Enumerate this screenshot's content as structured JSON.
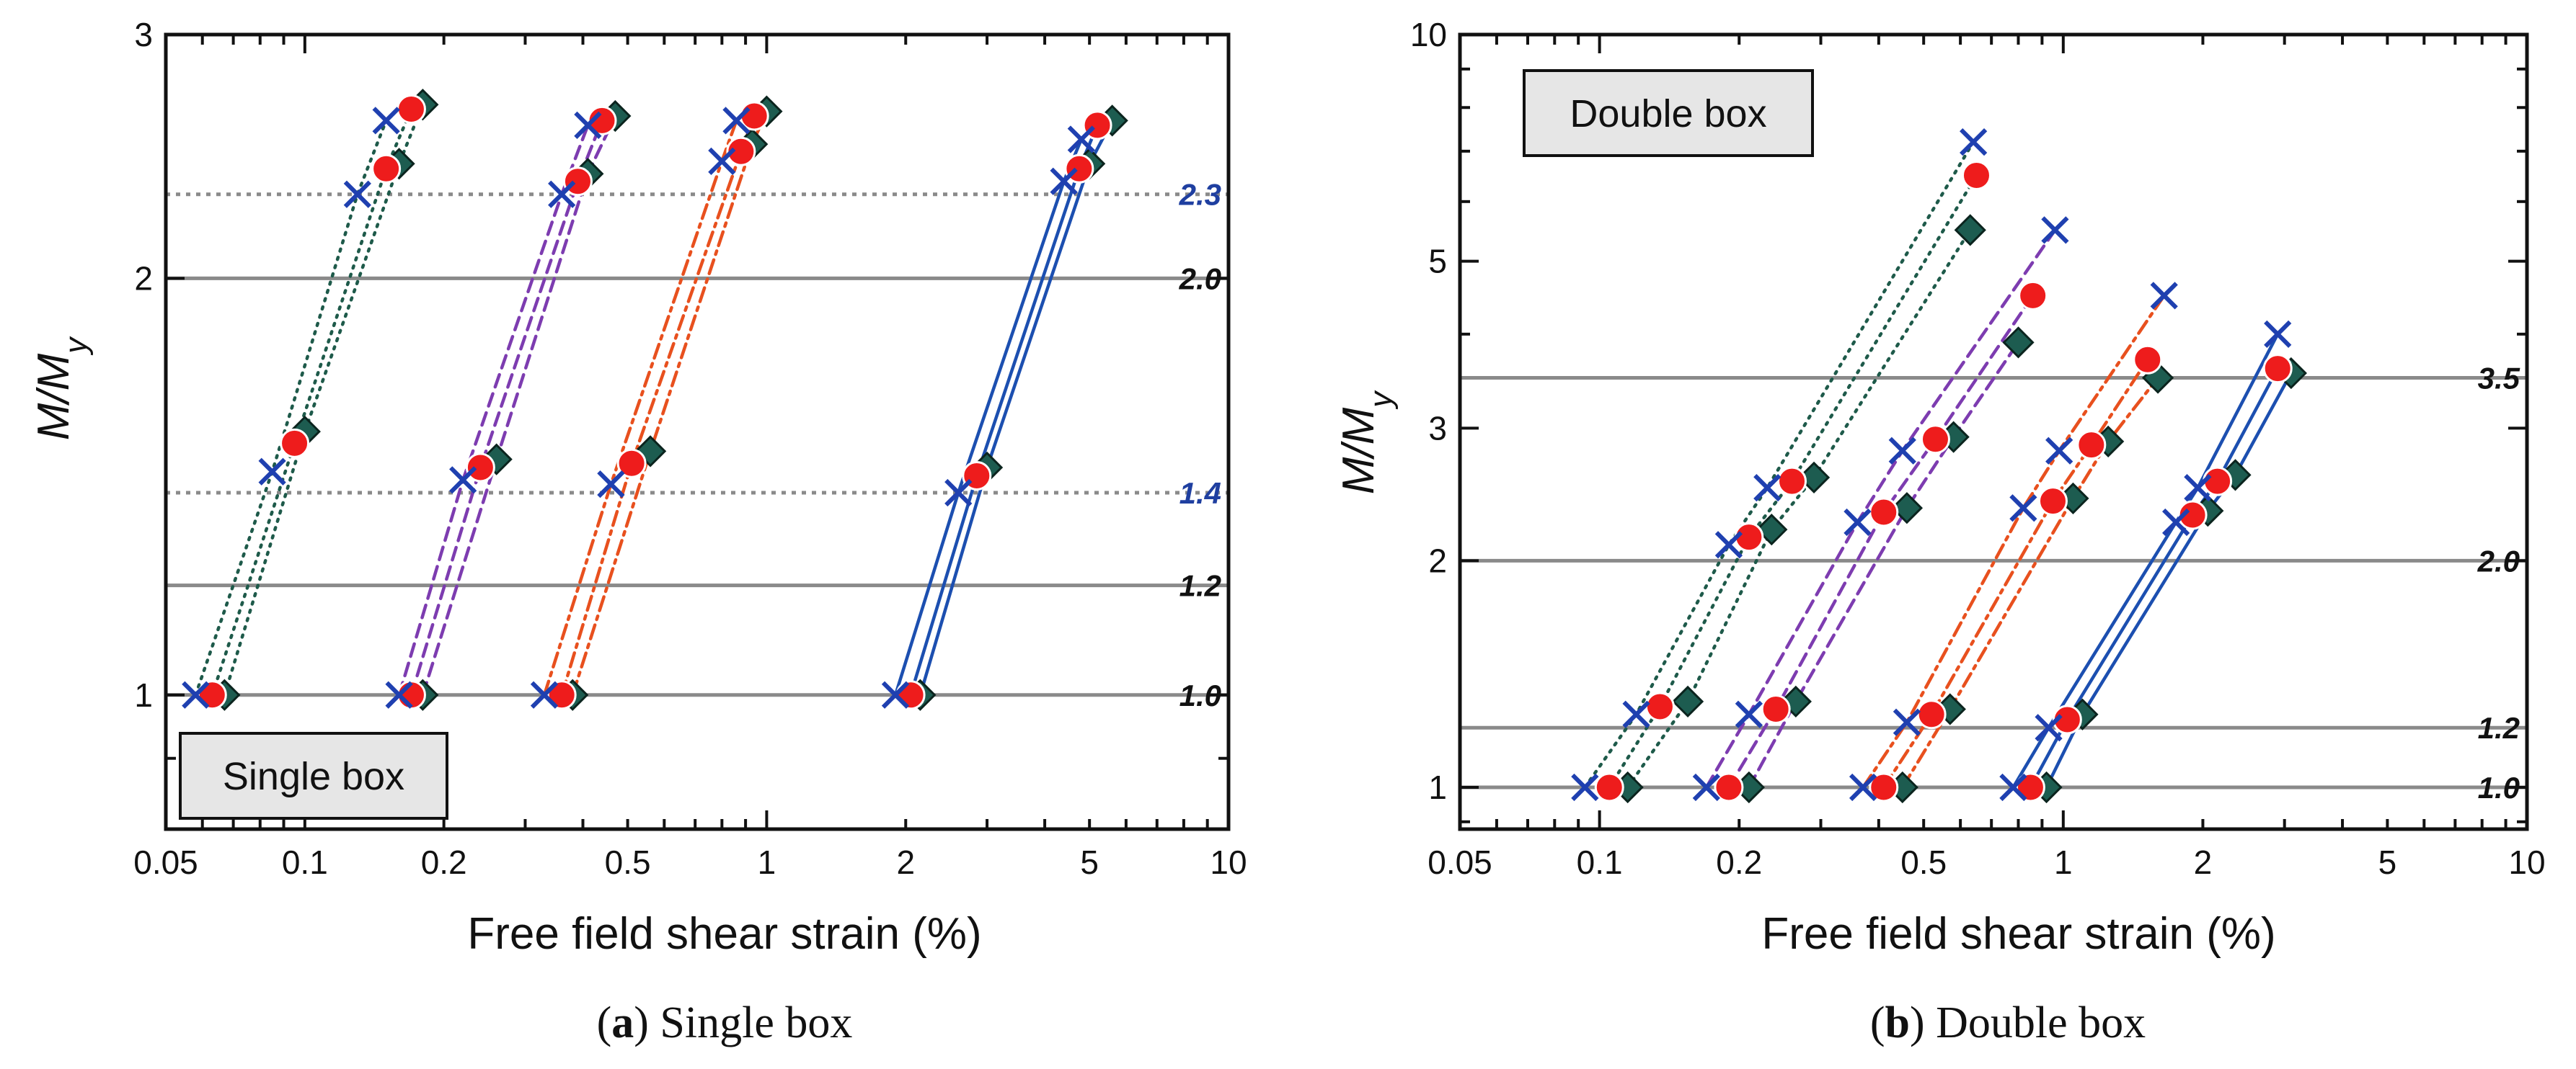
{
  "chart_data": [
    {
      "type": "line",
      "panel": "a",
      "title": "Single box",
      "caption_letter": "a",
      "caption_text": ") Single box",
      "xlabel": "Free field shear strain (%)",
      "ylabel_main": "M/M",
      "ylabel_sub": "y",
      "x_scale": "log",
      "y_scale": "log",
      "xlim": [
        0.05,
        10
      ],
      "ylim": [
        0.8,
        3
      ],
      "x_ticks": [
        {
          "v": 0.05,
          "label": "0.05"
        },
        {
          "v": 0.1,
          "label": "0.1"
        },
        {
          "v": 0.2,
          "label": "0.2"
        },
        {
          "v": 0.5,
          "label": "0.5"
        },
        {
          "v": 1,
          "label": "1"
        },
        {
          "v": 2,
          "label": "2"
        },
        {
          "v": 5,
          "label": "5"
        },
        {
          "v": 10,
          "label": "10"
        }
      ],
      "y_ticks": [
        {
          "v": 1,
          "label": "1"
        },
        {
          "v": 2,
          "label": "2"
        },
        {
          "v": 3,
          "label": "3"
        }
      ],
      "ref_lines": [
        {
          "y": 2.3,
          "label": "2.3",
          "style": "dotted",
          "label_color": "#1f3fa0"
        },
        {
          "y": 2.0,
          "label": "2.0",
          "style": "solid",
          "label_color": "#111111"
        },
        {
          "y": 1.4,
          "label": "1.4",
          "style": "dotted",
          "label_color": "#1f3fa0"
        },
        {
          "y": 1.2,
          "label": "1.2",
          "style": "solid",
          "label_color": "#111111"
        },
        {
          "y": 1.0,
          "label": "1.0",
          "style": "solid",
          "label_color": "#111111"
        }
      ],
      "groups": [
        {
          "line_color": "#1e5a4a",
          "dash": "dotted",
          "series": [
            {
              "marker": "x",
              "points": [
                [
                  0.058,
                  1.0
                ],
                [
                  0.085,
                  1.45
                ],
                [
                  0.13,
                  2.3
                ],
                [
                  0.15,
                  2.6
                ]
              ]
            },
            {
              "marker": "circle",
              "points": [
                [
                  0.063,
                  1.0
                ],
                [
                  0.095,
                  1.52
                ],
                [
                  0.15,
                  2.4
                ],
                [
                  0.17,
                  2.65
                ]
              ]
            },
            {
              "marker": "diamond",
              "points": [
                [
                  0.067,
                  1.0
                ],
                [
                  0.1,
                  1.55
                ],
                [
                  0.16,
                  2.42
                ],
                [
                  0.18,
                  2.67
                ]
              ]
            }
          ]
        },
        {
          "line_color": "#7d3cb0",
          "dash": "dashed",
          "series": [
            {
              "marker": "x",
              "points": [
                [
                  0.16,
                  1.0
                ],
                [
                  0.22,
                  1.43
                ],
                [
                  0.36,
                  2.3
                ],
                [
                  0.41,
                  2.58
                ]
              ]
            },
            {
              "marker": "circle",
              "points": [
                [
                  0.17,
                  1.0
                ],
                [
                  0.24,
                  1.46
                ],
                [
                  0.39,
                  2.35
                ],
                [
                  0.44,
                  2.6
                ]
              ]
            },
            {
              "marker": "diamond",
              "points": [
                [
                  0.18,
                  1.0
                ],
                [
                  0.26,
                  1.48
                ],
                [
                  0.41,
                  2.38
                ],
                [
                  0.47,
                  2.62
                ]
              ]
            }
          ]
        },
        {
          "line_color": "#e8501e",
          "dash": "dashdot",
          "series": [
            {
              "marker": "x",
              "points": [
                [
                  0.33,
                  1.0
                ],
                [
                  0.46,
                  1.42
                ],
                [
                  0.8,
                  2.43
                ],
                [
                  0.86,
                  2.6
                ]
              ]
            },
            {
              "marker": "circle",
              "points": [
                [
                  0.36,
                  1.0
                ],
                [
                  0.51,
                  1.47
                ],
                [
                  0.88,
                  2.47
                ],
                [
                  0.94,
                  2.62
                ]
              ]
            },
            {
              "marker": "diamond",
              "points": [
                [
                  0.38,
                  1.0
                ],
                [
                  0.56,
                  1.5
                ],
                [
                  0.93,
                  2.5
                ],
                [
                  1.0,
                  2.64
                ]
              ]
            }
          ]
        },
        {
          "line_color": "#1c4fb0",
          "dash": "solid",
          "series": [
            {
              "marker": "x",
              "points": [
                [
                  1.9,
                  1.0
                ],
                [
                  2.6,
                  1.4
                ],
                [
                  4.4,
                  2.35
                ],
                [
                  4.8,
                  2.52
                ]
              ]
            },
            {
              "marker": "circle",
              "points": [
                [
                  2.05,
                  1.0
                ],
                [
                  2.85,
                  1.44
                ],
                [
                  4.75,
                  2.4
                ],
                [
                  5.2,
                  2.58
                ]
              ]
            },
            {
              "marker": "diamond",
              "points": [
                [
                  2.15,
                  1.0
                ],
                [
                  3.0,
                  1.46
                ],
                [
                  5.0,
                  2.42
                ],
                [
                  5.6,
                  2.6
                ]
              ]
            }
          ]
        }
      ]
    },
    {
      "type": "line",
      "panel": "b",
      "title": "Double box",
      "caption_letter": "b",
      "caption_text": ") Double box",
      "xlabel": "Free field shear strain (%)",
      "ylabel_main": "M/M",
      "ylabel_sub": "y",
      "x_scale": "log",
      "y_scale": "log",
      "xlim": [
        0.05,
        10
      ],
      "ylim": [
        0.88,
        10
      ],
      "x_ticks": [
        {
          "v": 0.05,
          "label": "0.05"
        },
        {
          "v": 0.1,
          "label": "0.1"
        },
        {
          "v": 0.2,
          "label": "0.2"
        },
        {
          "v": 0.5,
          "label": "0.5"
        },
        {
          "v": 1,
          "label": "1"
        },
        {
          "v": 2,
          "label": "2"
        },
        {
          "v": 5,
          "label": "5"
        },
        {
          "v": 10,
          "label": "10"
        }
      ],
      "y_ticks": [
        {
          "v": 1,
          "label": "1"
        },
        {
          "v": 2,
          "label": "2"
        },
        {
          "v": 3,
          "label": "3"
        },
        {
          "v": 5,
          "label": "5"
        },
        {
          "v": 10,
          "label": "10"
        }
      ],
      "ref_lines": [
        {
          "y": 3.5,
          "label": "3.5",
          "style": "solid",
          "label_color": "#111111"
        },
        {
          "y": 2.0,
          "label": "2.0",
          "style": "solid",
          "label_color": "#111111"
        },
        {
          "y": 1.2,
          "label": "1.2",
          "style": "solid",
          "label_color": "#111111"
        },
        {
          "y": 1.0,
          "label": "1.0",
          "style": "solid",
          "label_color": "#111111"
        }
      ],
      "groups": [
        {
          "line_color": "#1e5a4a",
          "dash": "dotted",
          "series": [
            {
              "marker": "x",
              "points": [
                [
                  0.093,
                  1.0
                ],
                [
                  0.12,
                  1.25
                ],
                [
                  0.19,
                  2.1
                ],
                [
                  0.23,
                  2.5
                ],
                [
                  0.64,
                  7.2
                ]
              ]
            },
            {
              "marker": "circle",
              "points": [
                [
                  0.105,
                  1.0
                ],
                [
                  0.135,
                  1.28
                ],
                [
                  0.21,
                  2.15
                ],
                [
                  0.26,
                  2.55
                ],
                [
                  0.65,
                  6.5
                ]
              ]
            },
            {
              "marker": "diamond",
              "points": [
                [
                  0.115,
                  1.0
                ],
                [
                  0.155,
                  1.3
                ],
                [
                  0.235,
                  2.2
                ],
                [
                  0.29,
                  2.58
                ],
                [
                  0.63,
                  5.5
                ]
              ]
            }
          ]
        },
        {
          "line_color": "#7d3cb0",
          "dash": "dashed",
          "series": [
            {
              "marker": "x",
              "points": [
                [
                  0.17,
                  1.0
                ],
                [
                  0.21,
                  1.25
                ],
                [
                  0.36,
                  2.25
                ],
                [
                  0.45,
                  2.8
                ],
                [
                  0.96,
                  5.5
                ]
              ]
            },
            {
              "marker": "circle",
              "points": [
                [
                  0.19,
                  1.0
                ],
                [
                  0.24,
                  1.27
                ],
                [
                  0.41,
                  2.32
                ],
                [
                  0.53,
                  2.9
                ],
                [
                  0.86,
                  4.5
                ]
              ]
            },
            {
              "marker": "diamond",
              "points": [
                [
                  0.21,
                  1.0
                ],
                [
                  0.265,
                  1.3
                ],
                [
                  0.46,
                  2.35
                ],
                [
                  0.58,
                  2.92
                ],
                [
                  0.8,
                  3.9
                ]
              ]
            }
          ]
        },
        {
          "line_color": "#e8501e",
          "dash": "dashdot",
          "series": [
            {
              "marker": "x",
              "points": [
                [
                  0.37,
                  1.0
                ],
                [
                  0.46,
                  1.22
                ],
                [
                  0.82,
                  2.35
                ],
                [
                  0.98,
                  2.8
                ],
                [
                  1.65,
                  4.5
                ]
              ]
            },
            {
              "marker": "circle",
              "points": [
                [
                  0.41,
                  1.0
                ],
                [
                  0.52,
                  1.25
                ],
                [
                  0.95,
                  2.4
                ],
                [
                  1.15,
                  2.85
                ],
                [
                  1.52,
                  3.7
                ]
              ]
            },
            {
              "marker": "diamond",
              "points": [
                [
                  0.45,
                  1.0
                ],
                [
                  0.57,
                  1.27
                ],
                [
                  1.05,
                  2.42
                ],
                [
                  1.25,
                  2.88
                ],
                [
                  1.6,
                  3.5
                ]
              ]
            }
          ]
        },
        {
          "line_color": "#1c4fb0",
          "dash": "solid",
          "series": [
            {
              "marker": "x",
              "points": [
                [
                  0.78,
                  1.0
                ],
                [
                  0.93,
                  1.2
                ],
                [
                  1.75,
                  2.25
                ],
                [
                  1.95,
                  2.5
                ],
                [
                  2.9,
                  4.0
                ]
              ]
            },
            {
              "marker": "circle",
              "points": [
                [
                  0.85,
                  1.0
                ],
                [
                  1.02,
                  1.23
                ],
                [
                  1.9,
                  2.3
                ],
                [
                  2.15,
                  2.55
                ],
                [
                  2.9,
                  3.6
                ]
              ]
            },
            {
              "marker": "diamond",
              "points": [
                [
                  0.92,
                  1.0
                ],
                [
                  1.1,
                  1.25
                ],
                [
                  2.05,
                  2.33
                ],
                [
                  2.35,
                  2.6
                ],
                [
                  3.1,
                  3.55
                ]
              ]
            }
          ]
        }
      ]
    }
  ]
}
